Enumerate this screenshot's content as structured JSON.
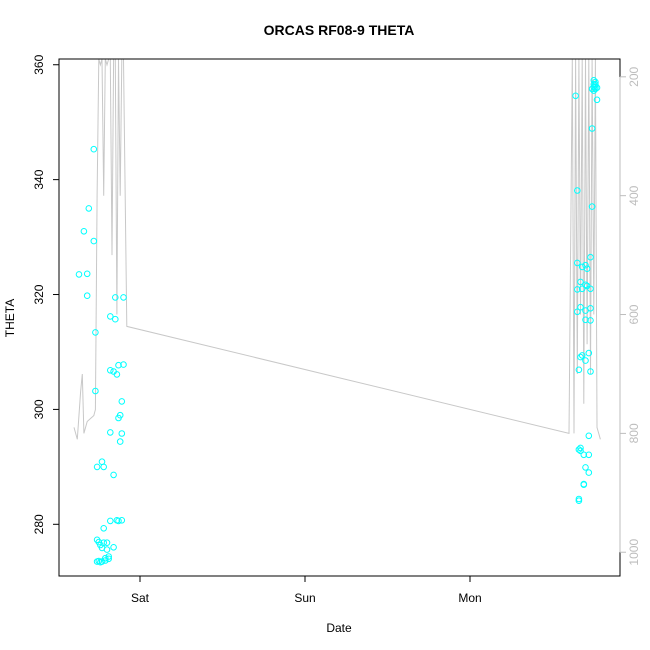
{
  "chart_data": {
    "type": "scatter",
    "title": "ORCAS RF08-9 THETA",
    "xlabel": "Date",
    "ylabel": "THETA",
    "x_tick_labels": [
      "Sat",
      "Sun",
      "Mon"
    ],
    "x_range_days": [
      -0.47,
      2.9
    ],
    "ylim": [
      271,
      361
    ],
    "y_ticks": [
      280,
      300,
      320,
      340,
      360
    ],
    "y2_ticks": [
      200,
      400,
      600,
      800,
      1000
    ],
    "y2lim": [
      1040,
      170
    ],
    "y2_reversed": true,
    "colors": {
      "points": "#00ffff",
      "line": "#c8c8c8",
      "axis": "#000000",
      "right_axis": "#bdbdbd"
    },
    "series": [
      {
        "marker": "circle",
        "color": "#00ffff",
        "points": [
          [
            -0.37,
            323.5
          ],
          [
            -0.34,
            331
          ],
          [
            -0.32,
            319.8
          ],
          [
            -0.32,
            323.6
          ],
          [
            -0.31,
            335
          ],
          [
            -0.28,
            345.3
          ],
          [
            -0.28,
            329.3
          ],
          [
            -0.27,
            313.4
          ],
          [
            -0.27,
            303.2
          ],
          [
            -0.26,
            290
          ],
          [
            -0.26,
            277.3
          ],
          [
            -0.26,
            273.5
          ],
          [
            -0.25,
            273.6
          ],
          [
            -0.25,
            276.9
          ],
          [
            -0.24,
            276.4
          ],
          [
            -0.24,
            273.4
          ],
          [
            -0.23,
            290.9
          ],
          [
            -0.23,
            275.9
          ],
          [
            -0.23,
            273.5
          ],
          [
            -0.22,
            290
          ],
          [
            -0.22,
            279.3
          ],
          [
            -0.22,
            276.8
          ],
          [
            -0.21,
            273.7
          ],
          [
            -0.21,
            274.1
          ],
          [
            -0.2,
            275.6
          ],
          [
            -0.2,
            276.8
          ],
          [
            -0.19,
            274.4
          ],
          [
            -0.19,
            274
          ],
          [
            -0.18,
            280.6
          ],
          [
            -0.18,
            296
          ],
          [
            -0.18,
            306.8
          ],
          [
            -0.18,
            316.2
          ],
          [
            -0.16,
            276
          ],
          [
            -0.16,
            288.6
          ],
          [
            -0.16,
            306.6
          ],
          [
            -0.15,
            315.7
          ],
          [
            -0.15,
            319.5
          ],
          [
            -0.14,
            306.1
          ],
          [
            -0.14,
            280.7
          ],
          [
            -0.13,
            280.6
          ],
          [
            -0.13,
            298.5
          ],
          [
            -0.13,
            307.7
          ],
          [
            -0.12,
            299
          ],
          [
            -0.12,
            294.4
          ],
          [
            -0.11,
            280.7
          ],
          [
            -0.11,
            295.8
          ],
          [
            -0.11,
            301.4
          ],
          [
            -0.1,
            307.8
          ],
          [
            -0.1,
            319.5
          ],
          [
            2.64,
            354.6
          ],
          [
            2.65,
            338.1
          ],
          [
            2.65,
            325.5
          ],
          [
            2.65,
            320.9
          ],
          [
            2.65,
            317
          ],
          [
            2.66,
            306.9
          ],
          [
            2.66,
            293
          ],
          [
            2.66,
            284.4
          ],
          [
            2.66,
            284.1
          ],
          [
            2.67,
            292.8
          ],
          [
            2.67,
            293.3
          ],
          [
            2.67,
            309.1
          ],
          [
            2.67,
            317.8
          ],
          [
            2.67,
            322.2
          ],
          [
            2.68,
            324.8
          ],
          [
            2.68,
            321
          ],
          [
            2.68,
            309.4
          ],
          [
            2.69,
            287
          ],
          [
            2.69,
            286.9
          ],
          [
            2.69,
            292.1
          ],
          [
            2.7,
            289.9
          ],
          [
            2.7,
            308.5
          ],
          [
            2.7,
            315.6
          ],
          [
            2.7,
            317.2
          ],
          [
            2.7,
            321.7
          ],
          [
            2.7,
            325.1
          ],
          [
            2.71,
            324.5
          ],
          [
            2.71,
            321.5
          ],
          [
            2.72,
            309.8
          ],
          [
            2.72,
            295.4
          ],
          [
            2.72,
            289
          ],
          [
            2.72,
            292.1
          ],
          [
            2.73,
            306.6
          ],
          [
            2.73,
            315.5
          ],
          [
            2.73,
            317.6
          ],
          [
            2.73,
            321
          ],
          [
            2.73,
            326.5
          ],
          [
            2.74,
            335.3
          ],
          [
            2.74,
            348.9
          ],
          [
            2.74,
            355.8
          ],
          [
            2.75,
            356.1
          ],
          [
            2.75,
            357.3
          ],
          [
            2.75,
            356.6
          ],
          [
            2.75,
            355.5
          ],
          [
            2.76,
            355.8
          ],
          [
            2.76,
            357
          ],
          [
            2.76,
            356.1
          ],
          [
            2.77,
            356
          ],
          [
            2.77,
            353.9
          ],
          [
            2.76,
            356.6
          ]
        ]
      },
      {
        "marker": "line",
        "color": "#c8c8c8",
        "axis": "right",
        "points": [
          [
            -0.4,
            790
          ],
          [
            -0.38,
            810
          ],
          [
            -0.36,
            730
          ],
          [
            -0.35,
            700
          ],
          [
            -0.34,
            800
          ],
          [
            -0.32,
            780
          ],
          [
            -0.3,
            775
          ],
          [
            -0.28,
            770
          ],
          [
            -0.27,
            760
          ],
          [
            -0.26,
            400
          ],
          [
            -0.25,
            170
          ],
          [
            -0.24,
            180
          ],
          [
            -0.23,
            170
          ],
          [
            -0.22,
            400
          ],
          [
            -0.21,
            170
          ],
          [
            -0.2,
            180
          ],
          [
            -0.19,
            170
          ],
          [
            -0.18,
            170
          ],
          [
            -0.17,
            500
          ],
          [
            -0.16,
            170
          ],
          [
            -0.15,
            170
          ],
          [
            -0.14,
            600
          ],
          [
            -0.13,
            170
          ],
          [
            -0.12,
            400
          ],
          [
            -0.11,
            170
          ],
          [
            -0.1,
            170
          ],
          [
            -0.08,
            620
          ],
          [
            2.6,
            800
          ],
          [
            2.62,
            170
          ],
          [
            2.63,
            800
          ],
          [
            2.64,
            170
          ],
          [
            2.65,
            700
          ],
          [
            2.66,
            170
          ],
          [
            2.67,
            600
          ],
          [
            2.68,
            170
          ],
          [
            2.69,
            750
          ],
          [
            2.7,
            170
          ],
          [
            2.71,
            650
          ],
          [
            2.72,
            170
          ],
          [
            2.73,
            700
          ],
          [
            2.74,
            170
          ],
          [
            2.75,
            600
          ],
          [
            2.76,
            170
          ],
          [
            2.77,
            790
          ],
          [
            2.78,
            800
          ],
          [
            2.79,
            810
          ]
        ]
      }
    ]
  }
}
